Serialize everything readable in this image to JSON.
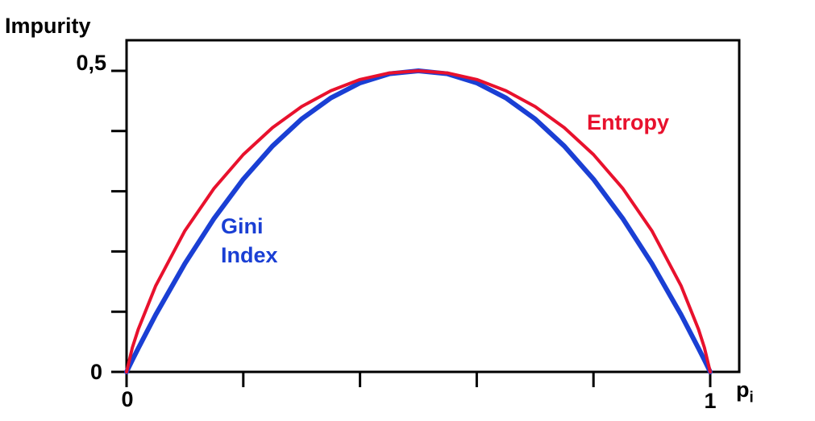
{
  "figure": {
    "background": "#ffffff"
  },
  "axes": {
    "y_title": "Impurity",
    "x_title": "p",
    "x_title_subscript": "i",
    "x_tick_labels": {
      "zero": "0",
      "one": "1"
    },
    "y_tick_labels": {
      "zero": "0",
      "half": "0,5"
    }
  },
  "annotations": {
    "entropy": "Entropy",
    "gini": "Gini\nIndex"
  },
  "colors": {
    "entropy_curve": "#e8112d",
    "gini_curve": "#1a3fd4",
    "axis": "#000000",
    "background": "#ffffff"
  },
  "chart_data": {
    "type": "line",
    "title": "",
    "xlabel": "p_i",
    "ylabel": "Impurity",
    "xlim": [
      0,
      1
    ],
    "ylim": [
      0,
      0.5
    ],
    "x_ticks": [
      0,
      0.2,
      0.4,
      0.6,
      0.8,
      1
    ],
    "y_ticks": [
      0,
      0.1,
      0.2,
      0.3,
      0.4,
      0.5
    ],
    "grid": false,
    "legend_position": "inline-annotations",
    "x": [
      0,
      0.01,
      0.02,
      0.05,
      0.1,
      0.15,
      0.2,
      0.25,
      0.3,
      0.35,
      0.4,
      0.45,
      0.5,
      0.55,
      0.6,
      0.65,
      0.7,
      0.75,
      0.8,
      0.85,
      0.9,
      0.95,
      0.98,
      0.99,
      1
    ],
    "series": [
      {
        "name": "Gini Index",
        "color": "#1a3fd4",
        "stroke_width": 6,
        "values": [
          0,
          0.0198,
          0.0392,
          0.095,
          0.18,
          0.255,
          0.32,
          0.375,
          0.42,
          0.455,
          0.48,
          0.495,
          0.5,
          0.495,
          0.48,
          0.455,
          0.42,
          0.375,
          0.32,
          0.255,
          0.18,
          0.095,
          0.0392,
          0.0198,
          0
        ]
      },
      {
        "name": "Entropy",
        "color": "#e8112d",
        "stroke_width": 4,
        "values": [
          0,
          0.0404,
          0.0707,
          0.1432,
          0.2345,
          0.3049,
          0.361,
          0.4056,
          0.4406,
          0.467,
          0.4855,
          0.4964,
          0.5,
          0.4964,
          0.4855,
          0.467,
          0.4406,
          0.4056,
          0.361,
          0.3049,
          0.2345,
          0.1432,
          0.0707,
          0.0404,
          0
        ]
      }
    ]
  }
}
